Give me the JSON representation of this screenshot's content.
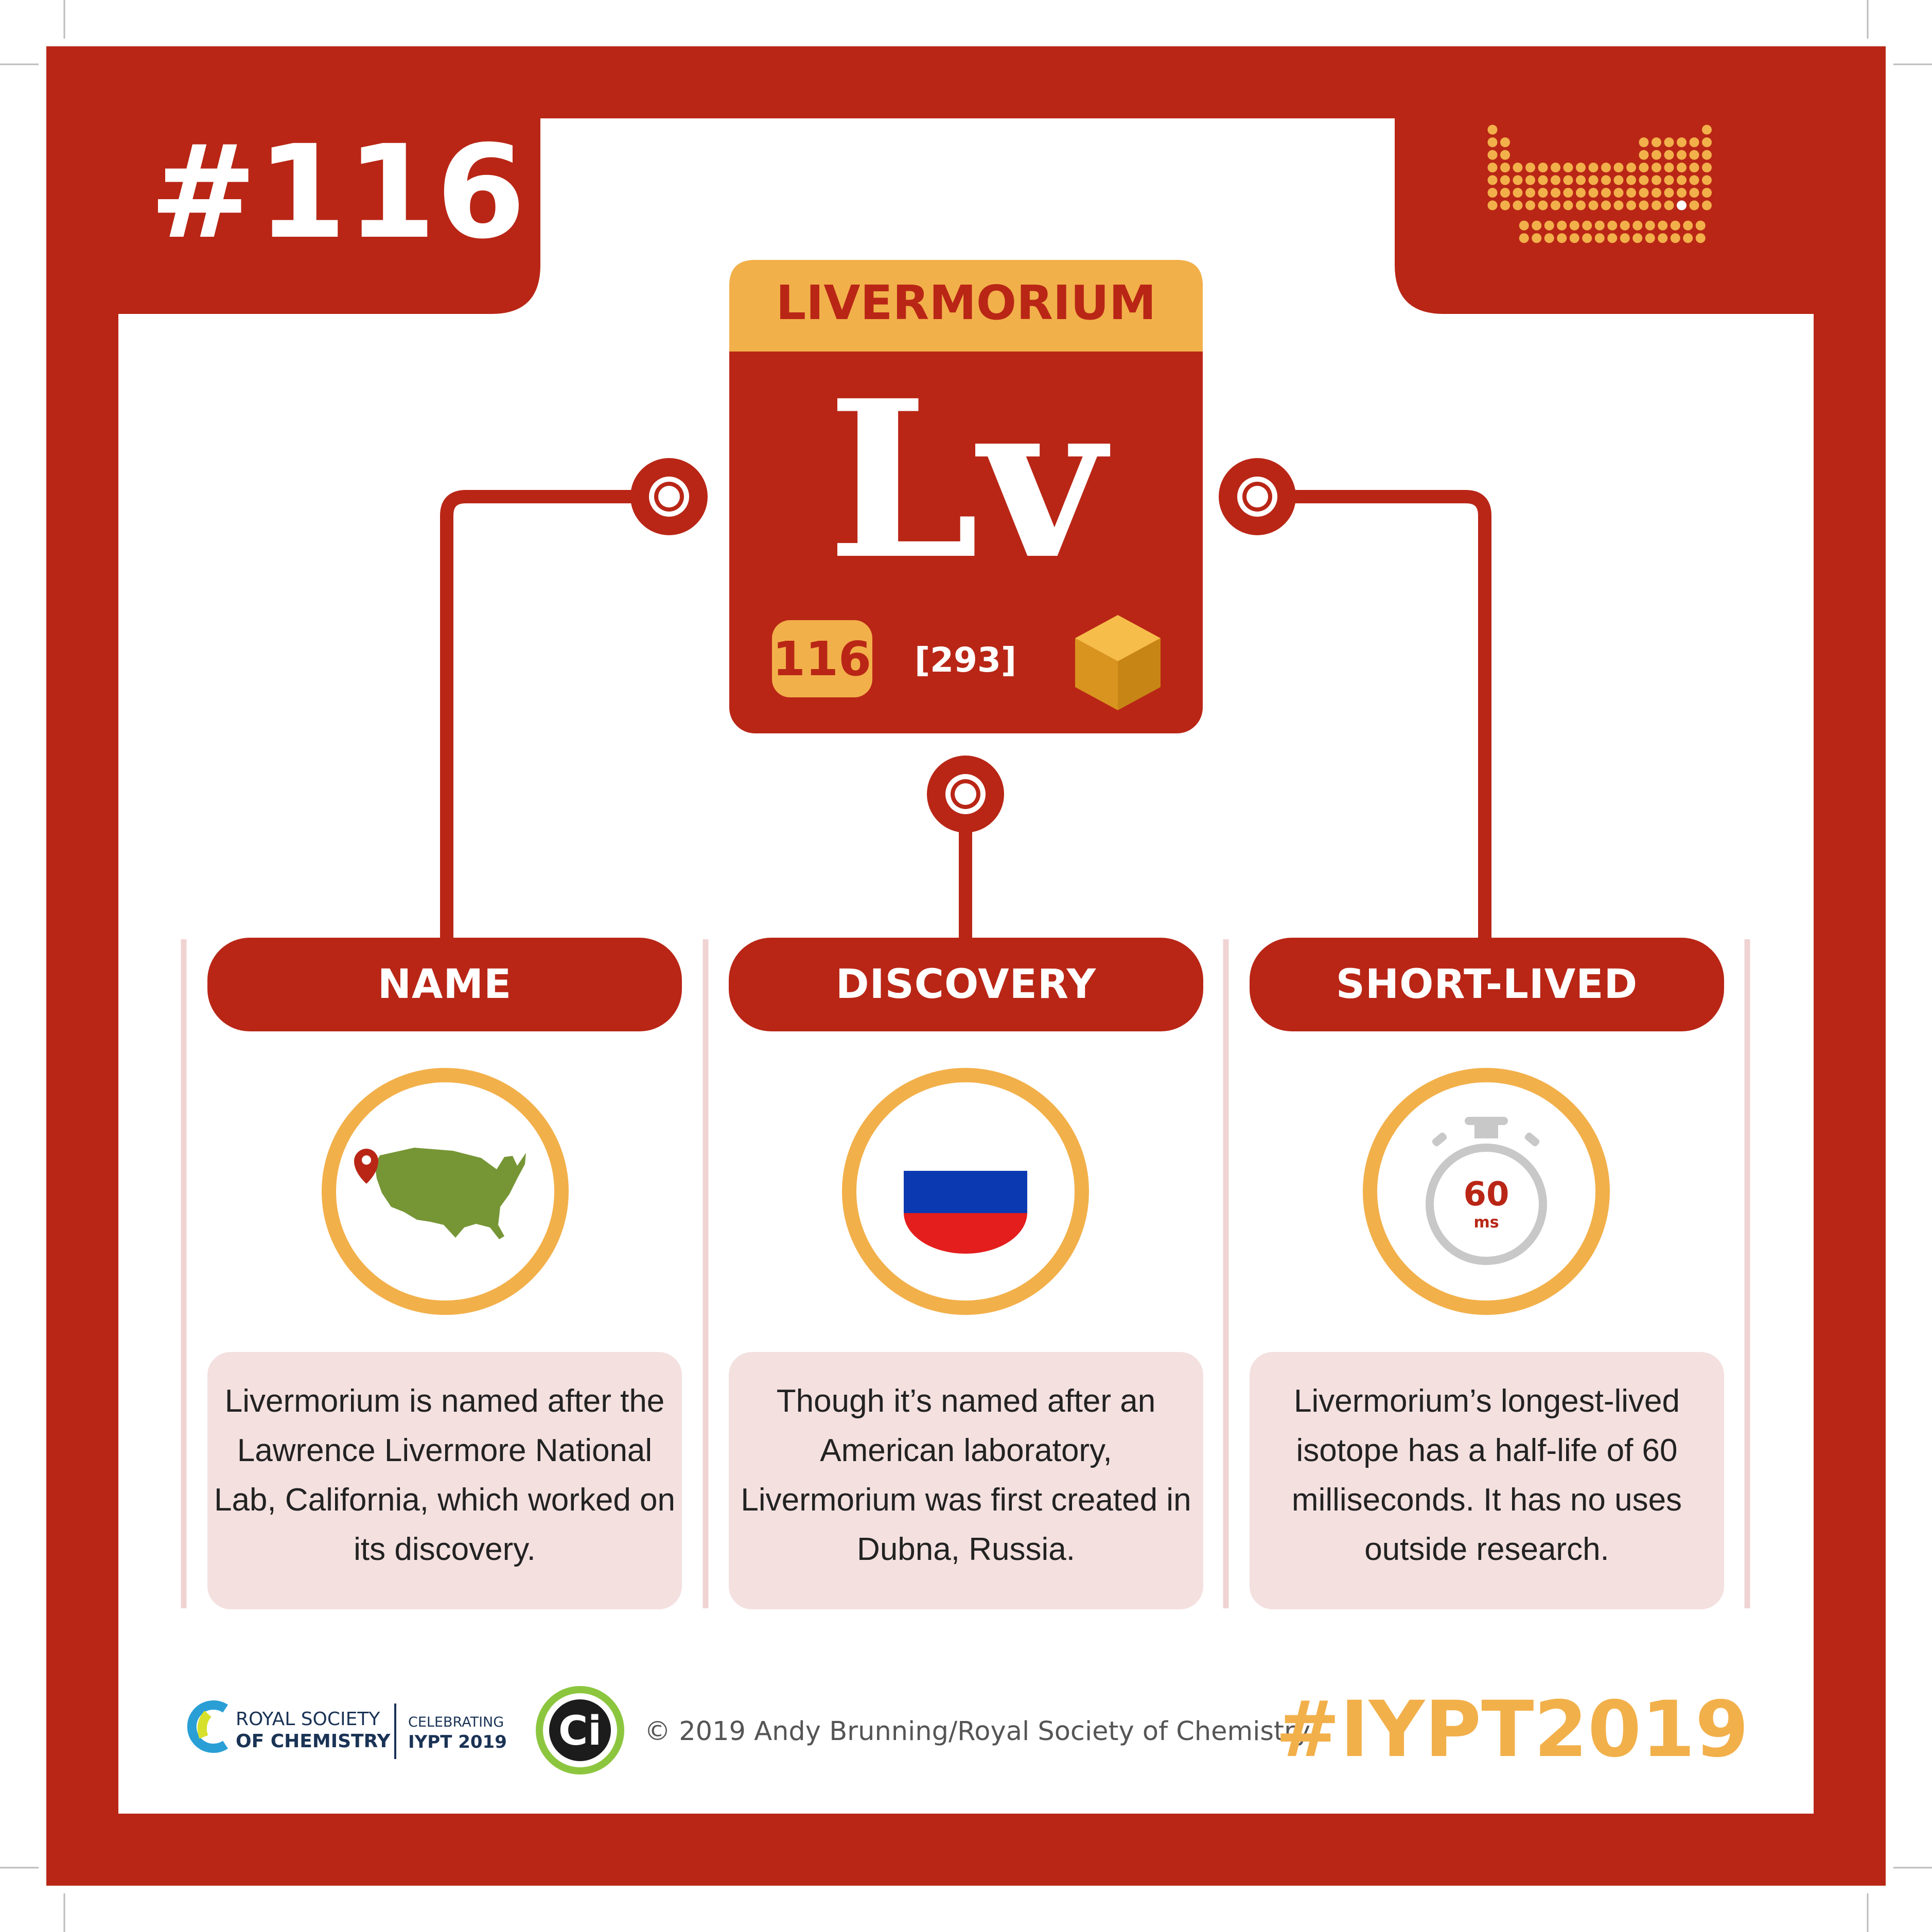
{
  "element": {
    "number_badge": "#116",
    "name": "LIVERMORIUM",
    "symbol": "Lv",
    "atomic_number": "116",
    "atomic_mass": "[293]"
  },
  "sections": [
    {
      "title": "NAME",
      "icon": "usa-map-pin-icon",
      "text": "Livermorium is named after the Lawrence Livermore National Lab, California, which worked on its discovery."
    },
    {
      "title": "DISCOVERY",
      "icon": "russia-flag-icon",
      "text": "Though it’s named after an American laboratory, Livermorium was first created in Dubna, Russia."
    },
    {
      "title": "SHORT-LIVED",
      "icon": "stopwatch-icon",
      "text": "Livermorium’s longest-lived isotope has a half-life of 60 milliseconds. It has no uses outside research."
    }
  ],
  "stopwatch": {
    "value": "60",
    "unit": "ms"
  },
  "footer": {
    "rsc_line1": "ROYAL SOCIETY",
    "rsc_line2": "OF CHEMISTRY",
    "celebrating": "CELEBRATING",
    "iypt": "IYPT 2019",
    "ci_logo": "Ci",
    "copyright": "© 2019 Andy Brunning/Royal Society of Chemistry",
    "hashtag": "#IYPT2019"
  },
  "colors": {
    "red": "#b92616",
    "orange": "#f2b04a",
    "pink": "#f3e0df",
    "green": "#769636",
    "gray": "#c8c8c8"
  }
}
